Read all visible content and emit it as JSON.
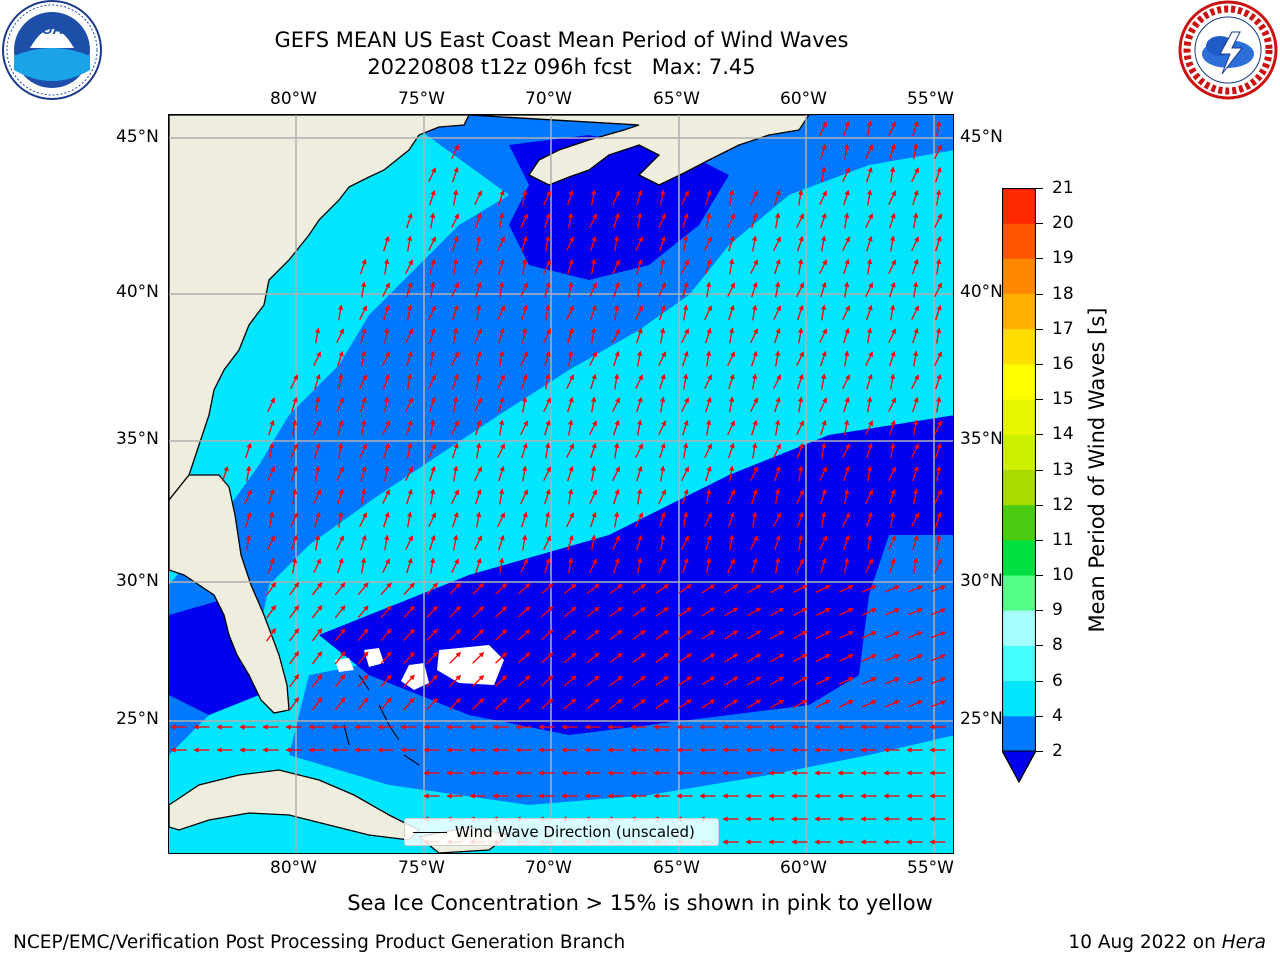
{
  "header": {
    "title_line1": "GEFS MEAN US East Coast Mean Period of Wind Waves",
    "title_line2": "20220808 t12z 096h fcst   Max: 7.45"
  },
  "logos": {
    "left": "noaa-logo",
    "right": "national-weather-service-logo"
  },
  "map": {
    "lon_labels": [
      "80°W",
      "75°W",
      "70°W",
      "65°W",
      "60°W",
      "55°W"
    ],
    "lat_labels": [
      "45°N",
      "40°N",
      "35°N",
      "30°N",
      "25°N"
    ],
    "lon_range": [
      -85,
      -54.5
    ],
    "lat_range": [
      20.5,
      46
    ],
    "land_color": "#efedde",
    "arrow_color": "#ff0000",
    "grid_color": "#b0b0b0"
  },
  "legend": {
    "label": "Wind Wave Direction (unscaled)"
  },
  "colorbar": {
    "label": "Mean Period of Wind Waves [s]",
    "ticks": [
      "2",
      "4",
      "6",
      "8",
      "9",
      "10",
      "11",
      "12",
      "13",
      "14",
      "15",
      "16",
      "17",
      "18",
      "19",
      "20",
      "21"
    ],
    "colors": [
      "#0078ff",
      "#00e6ff",
      "#44ffff",
      "#a5ffff",
      "#55ff88",
      "#00e040",
      "#4ccc10",
      "#a8dc00",
      "#cdf000",
      "#e6f500",
      "#ffff00",
      "#ffdd00",
      "#ffb000",
      "#ff8800",
      "#ff5500",
      "#ff2800",
      "#ff0000"
    ],
    "under_color": "#0000ee"
  },
  "footer": {
    "sea_ice_note": "Sea Ice Concentration > 15% is shown in pink to yellow",
    "branch": "NCEP/EMC/Verification Post Processing Product Generation Branch",
    "date": "10 Aug 2022 on",
    "machine": "Hera"
  }
}
